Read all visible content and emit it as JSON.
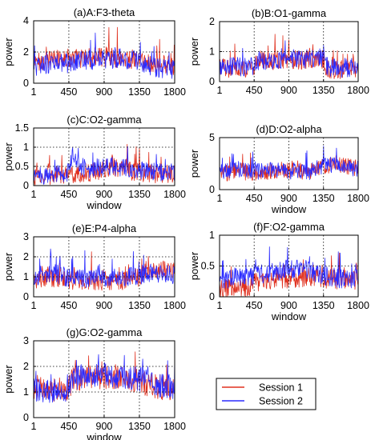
{
  "legend": {
    "entries": [
      {
        "label": "Session 1",
        "color": "#e0301e"
      },
      {
        "label": "Session 2",
        "color": "#2b2bff"
      }
    ]
  },
  "chart_data": [
    {
      "type": "line",
      "title": "(a)A:F3-theta",
      "xlabel": "",
      "ylabel": "power",
      "xlim": [
        1,
        1800
      ],
      "ylim": [
        0,
        4
      ],
      "xticks": [
        "1",
        "450",
        "900",
        "1350",
        "1800"
      ],
      "yticks": [
        "0",
        "2",
        "4"
      ],
      "grid": true,
      "series": [
        {
          "name": "Session 1",
          "points": [
            [
              1,
              1.3
            ],
            [
              225,
              1.5
            ],
            [
              450,
              1.6
            ],
            [
              675,
              1.6
            ],
            [
              900,
              1.7
            ],
            [
              1125,
              1.6
            ],
            [
              1350,
              1.5
            ],
            [
              1575,
              1.2
            ],
            [
              1800,
              1.1
            ]
          ]
        },
        {
          "name": "Session 2",
          "points": [
            [
              1,
              1.0
            ],
            [
              225,
              1.2
            ],
            [
              450,
              1.3
            ],
            [
              675,
              1.5
            ],
            [
              900,
              1.5
            ],
            [
              1125,
              1.6
            ],
            [
              1350,
              1.4
            ],
            [
              1575,
              1.0
            ],
            [
              1800,
              0.9
            ]
          ]
        }
      ]
    },
    {
      "type": "line",
      "title": "(b)B:O1-gamma",
      "xlabel": "",
      "ylabel": "power",
      "xlim": [
        1,
        1800
      ],
      "ylim": [
        0,
        2
      ],
      "xticks": [
        "1",
        "450",
        "900",
        "1350",
        "1800"
      ],
      "yticks": [
        "0",
        "1",
        "2"
      ],
      "grid": true,
      "series": [
        {
          "name": "Session 1",
          "points": [
            [
              1,
              0.45
            ],
            [
              225,
              0.45
            ],
            [
              450,
              0.45
            ],
            [
              500,
              0.7
            ],
            [
              675,
              0.7
            ],
            [
              900,
              0.72
            ],
            [
              1125,
              0.72
            ],
            [
              1350,
              0.75
            ],
            [
              1400,
              0.4
            ],
            [
              1575,
              0.4
            ],
            [
              1800,
              0.4
            ]
          ]
        },
        {
          "name": "Session 2",
          "points": [
            [
              1,
              0.45
            ],
            [
              225,
              0.5
            ],
            [
              450,
              0.5
            ],
            [
              500,
              0.7
            ],
            [
              675,
              0.72
            ],
            [
              900,
              0.78
            ],
            [
              1125,
              0.75
            ],
            [
              1350,
              0.8
            ],
            [
              1400,
              0.5
            ],
            [
              1575,
              0.45
            ],
            [
              1800,
              0.5
            ]
          ]
        }
      ]
    },
    {
      "type": "line",
      "title": "(c)C:O2-gamma",
      "xlabel": "window",
      "ylabel": "power",
      "xlim": [
        1,
        1800
      ],
      "ylim": [
        0,
        1.5
      ],
      "xticks": [
        "1",
        "450",
        "900",
        "1350",
        "1800"
      ],
      "yticks": [
        "0",
        "0.5",
        "1",
        "1.5"
      ],
      "grid": true,
      "series": [
        {
          "name": "Session 1",
          "points": [
            [
              1,
              0.22
            ],
            [
              225,
              0.25
            ],
            [
              450,
              0.28
            ],
            [
              600,
              0.3
            ],
            [
              800,
              0.35
            ],
            [
              900,
              0.45
            ],
            [
              1000,
              0.5
            ],
            [
              1125,
              0.4
            ],
            [
              1350,
              0.35
            ],
            [
              1575,
              0.3
            ],
            [
              1800,
              0.3
            ]
          ]
        },
        {
          "name": "Session 2",
          "points": [
            [
              1,
              0.25
            ],
            [
              225,
              0.28
            ],
            [
              450,
              0.35
            ],
            [
              500,
              0.85
            ],
            [
              560,
              0.6
            ],
            [
              675,
              0.4
            ],
            [
              900,
              0.5
            ],
            [
              1125,
              0.45
            ],
            [
              1350,
              0.4
            ],
            [
              1575,
              0.35
            ],
            [
              1800,
              0.35
            ]
          ]
        }
      ]
    },
    {
      "type": "line",
      "title": "(d)D:O2-alpha",
      "xlabel": "window",
      "ylabel": "power",
      "xlim": [
        1,
        1800
      ],
      "ylim": [
        0,
        5
      ],
      "xticks": [
        "1",
        "450",
        "900",
        "1350",
        "1800"
      ],
      "yticks": [
        "0",
        "5"
      ],
      "grid": true,
      "series": [
        {
          "name": "Session 1",
          "points": [
            [
              1,
              1.5
            ],
            [
              225,
              1.8
            ],
            [
              450,
              1.6
            ],
            [
              675,
              1.8
            ],
            [
              900,
              1.9
            ],
            [
              1125,
              1.7
            ],
            [
              1350,
              2.2
            ],
            [
              1575,
              2.4
            ],
            [
              1800,
              2.0
            ]
          ]
        },
        {
          "name": "Session 2",
          "points": [
            [
              1,
              1.8
            ],
            [
              225,
              2.0
            ],
            [
              450,
              1.7
            ],
            [
              675,
              1.9
            ],
            [
              900,
              1.8
            ],
            [
              1125,
              1.6
            ],
            [
              1350,
              2.3
            ],
            [
              1575,
              2.5
            ],
            [
              1800,
              1.8
            ]
          ]
        }
      ]
    },
    {
      "type": "line",
      "title": "(e)E:P4-alpha",
      "xlabel": "",
      "ylabel": "power",
      "xlim": [
        1,
        1800
      ],
      "ylim": [
        0,
        3
      ],
      "xticks": [
        "1",
        "450",
        "900",
        "1350",
        "1800"
      ],
      "yticks": [
        "0",
        "1",
        "2",
        "3"
      ],
      "grid": true,
      "series": [
        {
          "name": "Session 1",
          "points": [
            [
              1,
              0.9
            ],
            [
              225,
              0.95
            ],
            [
              450,
              0.85
            ],
            [
              675,
              0.8
            ],
            [
              900,
              0.8
            ],
            [
              1125,
              0.8
            ],
            [
              1350,
              1.0
            ],
            [
              1450,
              1.4
            ],
            [
              1575,
              1.4
            ],
            [
              1800,
              1.2
            ]
          ]
        },
        {
          "name": "Session 2",
          "points": [
            [
              1,
              1.0
            ],
            [
              225,
              1.2
            ],
            [
              450,
              0.95
            ],
            [
              675,
              0.9
            ],
            [
              900,
              0.95
            ],
            [
              1125,
              0.95
            ],
            [
              1350,
              1.1
            ],
            [
              1575,
              1.2
            ],
            [
              1800,
              1.1
            ]
          ]
        }
      ]
    },
    {
      "type": "line",
      "title": "(f)F:O2-gamma",
      "xlabel": "window",
      "ylabel": "power",
      "xlim": [
        1,
        1800
      ],
      "ylim": [
        0,
        1
      ],
      "xticks": [
        "1",
        "450",
        "900",
        "1350",
        "1800"
      ],
      "yticks": [
        "0",
        "0.5",
        "1"
      ],
      "grid": true,
      "series": [
        {
          "name": "Session 1",
          "points": [
            [
              1,
              0.12
            ],
            [
              225,
              0.14
            ],
            [
              400,
              0.15
            ],
            [
              450,
              0.22
            ],
            [
              675,
              0.26
            ],
            [
              900,
              0.3
            ],
            [
              1125,
              0.32
            ],
            [
              1350,
              0.3
            ],
            [
              1575,
              0.28
            ],
            [
              1800,
              0.27
            ]
          ]
        },
        {
          "name": "Session 2",
          "points": [
            [
              1,
              0.25
            ],
            [
              225,
              0.32
            ],
            [
              450,
              0.35
            ],
            [
              675,
              0.4
            ],
            [
              900,
              0.45
            ],
            [
              1125,
              0.45
            ],
            [
              1350,
              0.35
            ],
            [
              1575,
              0.3
            ],
            [
              1800,
              0.3
            ]
          ]
        }
      ]
    },
    {
      "type": "line",
      "title": "(g)G:O2-gamma",
      "xlabel": "window",
      "ylabel": "power",
      "xlim": [
        1,
        1800
      ],
      "ylim": [
        0,
        3
      ],
      "xticks": [
        "1",
        "450",
        "900",
        "1350",
        "1800"
      ],
      "yticks": [
        "0",
        "1",
        "2",
        "3"
      ],
      "grid": true,
      "series": [
        {
          "name": "Session 1",
          "points": [
            [
              1,
              1.2
            ],
            [
              225,
              1.1
            ],
            [
              450,
              1.1
            ],
            [
              500,
              1.5
            ],
            [
              675,
              1.55
            ],
            [
              900,
              1.6
            ],
            [
              1125,
              1.6
            ],
            [
              1350,
              1.4
            ],
            [
              1575,
              1.2
            ],
            [
              1800,
              1.1
            ]
          ]
        },
        {
          "name": "Session 2",
          "points": [
            [
              1,
              1.1
            ],
            [
              225,
              1.0
            ],
            [
              450,
              1.05
            ],
            [
              500,
              1.5
            ],
            [
              675,
              1.7
            ],
            [
              900,
              1.65
            ],
            [
              1125,
              1.55
            ],
            [
              1350,
              1.5
            ],
            [
              1575,
              1.3
            ],
            [
              1800,
              1.1
            ]
          ]
        }
      ]
    }
  ]
}
